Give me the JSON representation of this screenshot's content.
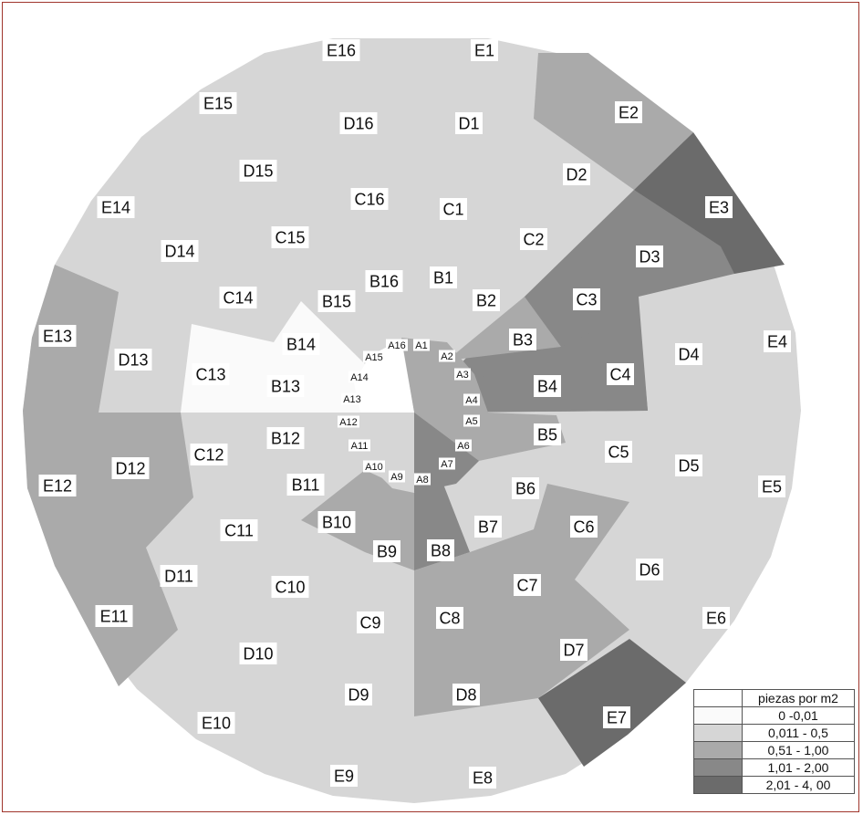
{
  "rings": {
    "A": [
      "A1",
      "A2",
      "A3",
      "A4",
      "A5",
      "A6",
      "A7",
      "A8",
      "A9",
      "A10",
      "A11",
      "A12",
      "A13",
      "A14",
      "A15",
      "A16"
    ],
    "B": [
      "B1",
      "B2",
      "B3",
      "B4",
      "B5",
      "B6",
      "B7",
      "B8",
      "B9",
      "B10",
      "B11",
      "B12",
      "B13",
      "B14",
      "B15",
      "B16"
    ],
    "C": [
      "C1",
      "C2",
      "C3",
      "C4",
      "C5",
      "C6",
      "C7",
      "C8",
      "C9",
      "C10",
      "C11",
      "C12",
      "C13",
      "C14",
      "C15",
      "C16"
    ],
    "D": [
      "D1",
      "D2",
      "D3",
      "D4",
      "D5",
      "D6",
      "D7",
      "D8",
      "D9",
      "D10",
      "D11",
      "D12",
      "D13",
      "D14",
      "D15",
      "D16"
    ],
    "E": [
      "E1",
      "E2",
      "E3",
      "E4",
      "E5",
      "E6",
      "E7",
      "E8",
      "E9",
      "E10",
      "E11",
      "E12",
      "E13",
      "E14",
      "E15",
      "E16"
    ]
  },
  "legend": {
    "title": "piezas por m2",
    "items": [
      {
        "label": "0 -0,01",
        "color": "#fafafa"
      },
      {
        "label": "0,011 - 0,5",
        "color": "#d6d6d6"
      },
      {
        "label": "0,51 - 1,00",
        "color": "#aaaaaa"
      },
      {
        "label": "1,01 - 2,00",
        "color": "#888888"
      },
      {
        "label": "2,01 - 4, 00",
        "color": "#6b6b6b"
      }
    ]
  },
  "colors": {
    "background": "#ffffff",
    "border": "#a0352c",
    "very_light": "#fafafa",
    "light": "#d6d6d6",
    "medium": "#aaaaaa",
    "dark": "#888888",
    "darkest": "#6b6b6b"
  }
}
